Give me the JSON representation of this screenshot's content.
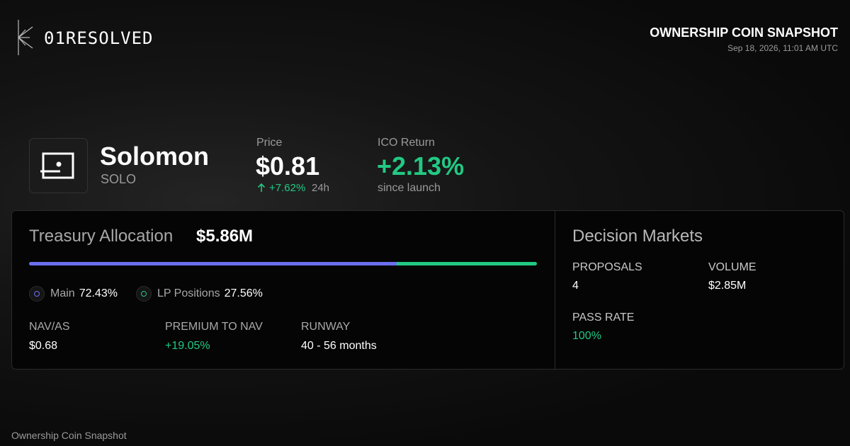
{
  "header": {
    "brand": "01RESOLVED",
    "title": "OWNERSHIP COIN SNAPSHOT",
    "timestamp": "Sep 18, 2026, 11:01 AM UTC"
  },
  "token": {
    "name": "Solomon",
    "ticker": "SOLO"
  },
  "price": {
    "label": "Price",
    "value": "$0.81",
    "change": "+7.62%",
    "period": "24h"
  },
  "ico_return": {
    "label": "ICO Return",
    "value": "+2.13%",
    "note": "since launch"
  },
  "treasury": {
    "title": "Treasury Allocation",
    "total": "$5.86M",
    "allocation": [
      {
        "name": "Main",
        "value": 72.43,
        "value_label": "72.43%",
        "color": "#6b6ff0"
      },
      {
        "name": "LP Positions",
        "value": 27.56,
        "value_label": "27.56%",
        "color": "#22c983"
      }
    ],
    "stats": [
      {
        "label": "NAV/AS",
        "value": "$0.68"
      },
      {
        "label": "PREMIUM TO NAV",
        "value": "+19.05%"
      },
      {
        "label": "RUNWAY",
        "value": "40 - 56 months"
      }
    ]
  },
  "decision_markets": {
    "title": "Decision Markets",
    "stats": [
      {
        "label": "PROPOSALS",
        "value": "4"
      },
      {
        "label": "VOLUME",
        "value": "$2.85M"
      },
      {
        "label": "PASS RATE",
        "value": "100%"
      }
    ]
  },
  "footer": "Ownership Coin Snapshot"
}
